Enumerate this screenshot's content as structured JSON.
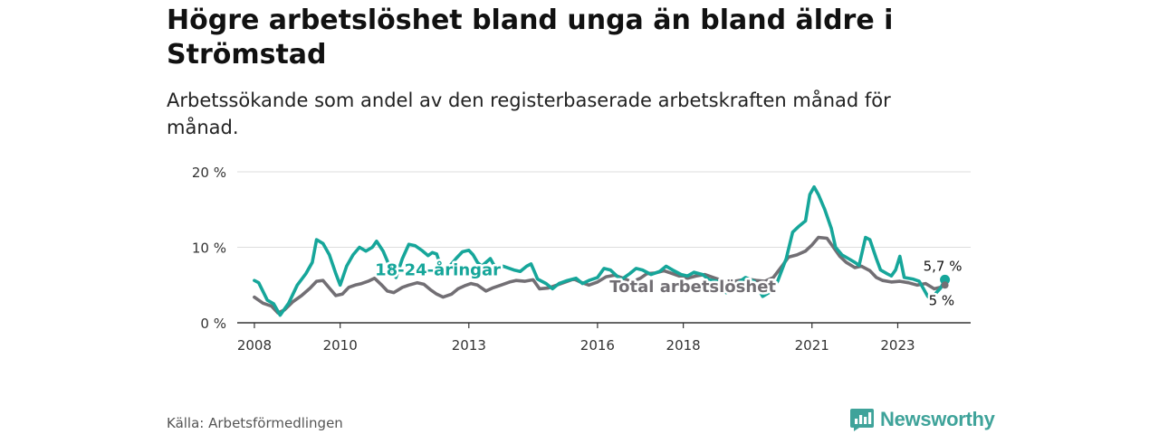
{
  "title": "Högre arbetslöshet bland unga än bland äldre i Strömstad",
  "subtitle": "Arbetssökande som andel av den registerbaserade arbetskraften månad för månad.",
  "source": "Källa: Arbetsförmedlingen",
  "brand": {
    "name": "Newsworthy",
    "color": "#3fa39a"
  },
  "colors": {
    "youth": "#16a69a",
    "total": "#726f74",
    "grid": "#dddddd",
    "axis": "#333333"
  },
  "chart_data": {
    "type": "line",
    "x_unit": "year",
    "xlim": [
      2007.6,
      2024.7
    ],
    "ylim": [
      0,
      20
    ],
    "y_ticks": [
      {
        "value": 0,
        "label": "0 %"
      },
      {
        "value": 10,
        "label": "10 %"
      },
      {
        "value": 20,
        "label": "20 %"
      }
    ],
    "x_ticks": [
      {
        "value": 2008,
        "label": "2008"
      },
      {
        "value": 2010,
        "label": "2010"
      },
      {
        "value": 2013,
        "label": "2013"
      },
      {
        "value": 2016,
        "label": "2016"
      },
      {
        "value": 2018,
        "label": "2018"
      },
      {
        "value": 2021,
        "label": "2021"
      },
      {
        "value": 2023,
        "label": "2023"
      }
    ],
    "series": [
      {
        "name": "18-24-åringar",
        "color": "#16a69a",
        "points": [
          [
            2008.0,
            5.6
          ],
          [
            2008.1,
            5.3
          ],
          [
            2008.3,
            3.0
          ],
          [
            2008.45,
            2.5
          ],
          [
            2008.6,
            1.0
          ],
          [
            2008.8,
            2.6
          ],
          [
            2009.0,
            5.0
          ],
          [
            2009.2,
            6.5
          ],
          [
            2009.35,
            8.0
          ],
          [
            2009.45,
            11.0
          ],
          [
            2009.6,
            10.5
          ],
          [
            2009.75,
            9.0
          ],
          [
            2009.9,
            6.5
          ],
          [
            2010.0,
            5.0
          ],
          [
            2010.15,
            7.5
          ],
          [
            2010.3,
            9.0
          ],
          [
            2010.45,
            10.0
          ],
          [
            2010.6,
            9.5
          ],
          [
            2010.75,
            10.0
          ],
          [
            2010.85,
            10.8
          ],
          [
            2011.0,
            9.5
          ],
          [
            2011.15,
            7.5
          ],
          [
            2011.3,
            6.0
          ],
          [
            2011.45,
            8.5
          ],
          [
            2011.6,
            10.4
          ],
          [
            2011.75,
            10.2
          ],
          [
            2011.9,
            9.6
          ],
          [
            2012.05,
            8.9
          ],
          [
            2012.15,
            9.3
          ],
          [
            2012.25,
            9.1
          ],
          [
            2012.4,
            6.5
          ],
          [
            2012.55,
            7.5
          ],
          [
            2012.7,
            8.5
          ],
          [
            2012.85,
            9.4
          ],
          [
            2013.0,
            9.6
          ],
          [
            2013.1,
            9.0
          ],
          [
            2013.2,
            8.0
          ],
          [
            2013.3,
            7.5
          ],
          [
            2013.5,
            8.5
          ],
          [
            2013.65,
            7.0
          ],
          [
            2013.8,
            7.5
          ],
          [
            2014.05,
            7.0
          ],
          [
            2014.2,
            6.8
          ],
          [
            2014.35,
            7.5
          ],
          [
            2014.45,
            7.8
          ],
          [
            2014.55,
            6.5
          ],
          [
            2014.6,
            5.8
          ],
          [
            2014.8,
            5.2
          ],
          [
            2014.95,
            4.5
          ],
          [
            2015.1,
            5.2
          ],
          [
            2015.3,
            5.6
          ],
          [
            2015.5,
            5.9
          ],
          [
            2015.65,
            5.2
          ],
          [
            2015.8,
            5.6
          ],
          [
            2016.0,
            6.0
          ],
          [
            2016.15,
            7.2
          ],
          [
            2016.3,
            7.0
          ],
          [
            2016.45,
            6.2
          ],
          [
            2016.55,
            5.7
          ],
          [
            2016.75,
            6.5
          ],
          [
            2016.9,
            7.2
          ],
          [
            2017.05,
            7.0
          ],
          [
            2017.25,
            6.4
          ],
          [
            2017.45,
            6.8
          ],
          [
            2017.6,
            7.5
          ],
          [
            2017.75,
            7.0
          ],
          [
            2017.95,
            6.4
          ],
          [
            2018.1,
            6.2
          ],
          [
            2018.25,
            6.7
          ],
          [
            2018.45,
            6.4
          ],
          [
            2018.6,
            5.7
          ],
          [
            2018.8,
            5.5
          ],
          [
            2019.0,
            4.0
          ],
          [
            2019.2,
            5.0
          ],
          [
            2019.45,
            6.0
          ],
          [
            2019.65,
            5.5
          ],
          [
            2019.85,
            3.5
          ],
          [
            2020.0,
            4.0
          ],
          [
            2020.2,
            5.5
          ],
          [
            2020.4,
            8.5
          ],
          [
            2020.55,
            12.0
          ],
          [
            2020.7,
            12.8
          ],
          [
            2020.85,
            13.5
          ],
          [
            2020.95,
            17.0
          ],
          [
            2021.05,
            18.0
          ],
          [
            2021.15,
            17.0
          ],
          [
            2021.3,
            15.0
          ],
          [
            2021.45,
            12.5
          ],
          [
            2021.55,
            10.0
          ],
          [
            2021.7,
            9.0
          ],
          [
            2021.85,
            8.5
          ],
          [
            2022.0,
            8.0
          ],
          [
            2022.1,
            7.6
          ],
          [
            2022.25,
            11.3
          ],
          [
            2022.35,
            11.0
          ],
          [
            2022.5,
            8.5
          ],
          [
            2022.6,
            7.0
          ],
          [
            2022.75,
            6.5
          ],
          [
            2022.85,
            6.2
          ],
          [
            2022.95,
            7.0
          ],
          [
            2023.05,
            8.8
          ],
          [
            2023.15,
            6.0
          ],
          [
            2023.35,
            5.8
          ],
          [
            2023.5,
            5.5
          ],
          [
            2023.6,
            4.5
          ],
          [
            2023.7,
            3.5
          ],
          [
            2023.8,
            3.0
          ],
          [
            2023.9,
            4.0
          ],
          [
            2024.0,
            4.6
          ],
          [
            2024.1,
            5.7
          ]
        ]
      },
      {
        "name": "Total arbetslöshet",
        "color": "#726f74",
        "points": [
          [
            2008.0,
            3.4
          ],
          [
            2008.2,
            2.6
          ],
          [
            2008.4,
            2.2
          ],
          [
            2008.55,
            1.3
          ],
          [
            2008.7,
            1.7
          ],
          [
            2008.9,
            2.8
          ],
          [
            2009.1,
            3.6
          ],
          [
            2009.3,
            4.6
          ],
          [
            2009.45,
            5.5
          ],
          [
            2009.6,
            5.6
          ],
          [
            2009.75,
            4.6
          ],
          [
            2009.9,
            3.6
          ],
          [
            2010.05,
            3.8
          ],
          [
            2010.2,
            4.7
          ],
          [
            2010.35,
            5.0
          ],
          [
            2010.5,
            5.2
          ],
          [
            2010.65,
            5.5
          ],
          [
            2010.8,
            5.9
          ],
          [
            2010.95,
            5.1
          ],
          [
            2011.1,
            4.2
          ],
          [
            2011.25,
            4.0
          ],
          [
            2011.45,
            4.7
          ],
          [
            2011.6,
            5.0
          ],
          [
            2011.8,
            5.3
          ],
          [
            2011.95,
            5.1
          ],
          [
            2012.1,
            4.4
          ],
          [
            2012.25,
            3.8
          ],
          [
            2012.4,
            3.4
          ],
          [
            2012.6,
            3.8
          ],
          [
            2012.75,
            4.5
          ],
          [
            2012.9,
            4.9
          ],
          [
            2013.05,
            5.2
          ],
          [
            2013.2,
            5.0
          ],
          [
            2013.4,
            4.2
          ],
          [
            2013.55,
            4.6
          ],
          [
            2013.75,
            5.0
          ],
          [
            2013.95,
            5.4
          ],
          [
            2014.1,
            5.6
          ],
          [
            2014.3,
            5.5
          ],
          [
            2014.5,
            5.7
          ],
          [
            2014.65,
            4.5
          ],
          [
            2014.85,
            4.6
          ],
          [
            2015.05,
            5.0
          ],
          [
            2015.25,
            5.4
          ],
          [
            2015.45,
            5.8
          ],
          [
            2015.6,
            5.4
          ],
          [
            2015.8,
            5.0
          ],
          [
            2016.0,
            5.4
          ],
          [
            2016.2,
            6.1
          ],
          [
            2016.4,
            6.3
          ],
          [
            2016.6,
            5.9
          ],
          [
            2016.8,
            5.4
          ],
          [
            2017.0,
            5.9
          ],
          [
            2017.15,
            6.5
          ],
          [
            2017.35,
            6.6
          ],
          [
            2017.55,
            6.9
          ],
          [
            2017.75,
            6.5
          ],
          [
            2017.95,
            6.1
          ],
          [
            2018.1,
            5.9
          ],
          [
            2018.3,
            6.2
          ],
          [
            2018.5,
            6.4
          ],
          [
            2018.7,
            6.0
          ],
          [
            2018.9,
            5.6
          ],
          [
            2019.1,
            5.4
          ],
          [
            2019.3,
            5.6
          ],
          [
            2019.5,
            5.8
          ],
          [
            2019.7,
            5.6
          ],
          [
            2019.9,
            5.5
          ],
          [
            2020.1,
            6.0
          ],
          [
            2020.3,
            7.5
          ],
          [
            2020.45,
            8.7
          ],
          [
            2020.65,
            9.0
          ],
          [
            2020.85,
            9.5
          ],
          [
            2021.0,
            10.3
          ],
          [
            2021.15,
            11.3
          ],
          [
            2021.35,
            11.2
          ],
          [
            2021.5,
            10.0
          ],
          [
            2021.65,
            8.8
          ],
          [
            2021.8,
            8.0
          ],
          [
            2022.0,
            7.3
          ],
          [
            2022.15,
            7.5
          ],
          [
            2022.35,
            6.9
          ],
          [
            2022.5,
            6.0
          ],
          [
            2022.65,
            5.6
          ],
          [
            2022.85,
            5.4
          ],
          [
            2023.05,
            5.5
          ],
          [
            2023.25,
            5.3
          ],
          [
            2023.45,
            5.0
          ],
          [
            2023.65,
            5.2
          ],
          [
            2023.85,
            4.5
          ],
          [
            2024.0,
            4.7
          ],
          [
            2024.1,
            5.0
          ]
        ]
      }
    ],
    "annotations": [
      {
        "target": "series0_name",
        "text": "18-24-åringar",
        "x": 2012.7,
        "y": 7.0
      },
      {
        "target": "series1_name",
        "text": "Total arbetslöshet",
        "x": 2017.8,
        "y": 4.7
      },
      {
        "target": "series0_last",
        "text": "5,7 %",
        "x": 2024.1,
        "y": 5.7
      },
      {
        "target": "series1_last",
        "text": "5 %",
        "x": 2024.1,
        "y": 5.0
      }
    ]
  }
}
